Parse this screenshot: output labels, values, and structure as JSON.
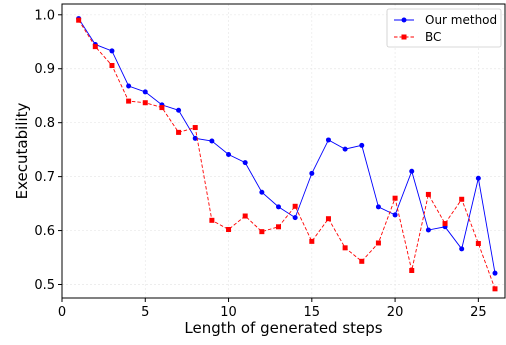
{
  "chart_data": {
    "type": "line",
    "title": "",
    "xlabel": "Length of generated steps",
    "ylabel": "Executability",
    "xlim": [
      0,
      26.6
    ],
    "ylim": [
      0.475,
      1.02
    ],
    "xticks": [
      0,
      5,
      10,
      15,
      20,
      25
    ],
    "yticks": [
      0.5,
      0.6,
      0.7,
      0.8,
      0.9,
      1.0
    ],
    "ytick_labels": [
      "0.5",
      "0.6",
      "0.7",
      "0.8",
      "0.9",
      "1.0"
    ],
    "grid": true,
    "legend_position": "top-right",
    "x": [
      1,
      2,
      3,
      4,
      5,
      6,
      7,
      8,
      9,
      10,
      11,
      12,
      13,
      14,
      15,
      16,
      17,
      18,
      19,
      20,
      21,
      22,
      23,
      24,
      25,
      26
    ],
    "series": [
      {
        "name": "Our method",
        "color": "#0000ff",
        "line_style": "solid",
        "marker": "circle",
        "values": [
          0.993,
          0.945,
          0.933,
          0.868,
          0.857,
          0.833,
          0.823,
          0.771,
          0.766,
          0.741,
          0.726,
          0.671,
          0.644,
          0.624,
          0.706,
          0.768,
          0.751,
          0.758,
          0.644,
          0.629,
          0.71,
          0.601,
          0.607,
          0.566,
          0.697,
          0.521
        ]
      },
      {
        "name": "BC",
        "color": "#ff0000",
        "line_style": "dashed",
        "marker": "square",
        "values": [
          0.99,
          0.941,
          0.906,
          0.84,
          0.837,
          0.828,
          0.782,
          0.791,
          0.619,
          0.602,
          0.627,
          0.598,
          0.607,
          0.645,
          0.58,
          0.622,
          0.568,
          0.543,
          0.577,
          0.66,
          0.526,
          0.667,
          0.613,
          0.658,
          0.576,
          0.492
        ]
      }
    ]
  }
}
